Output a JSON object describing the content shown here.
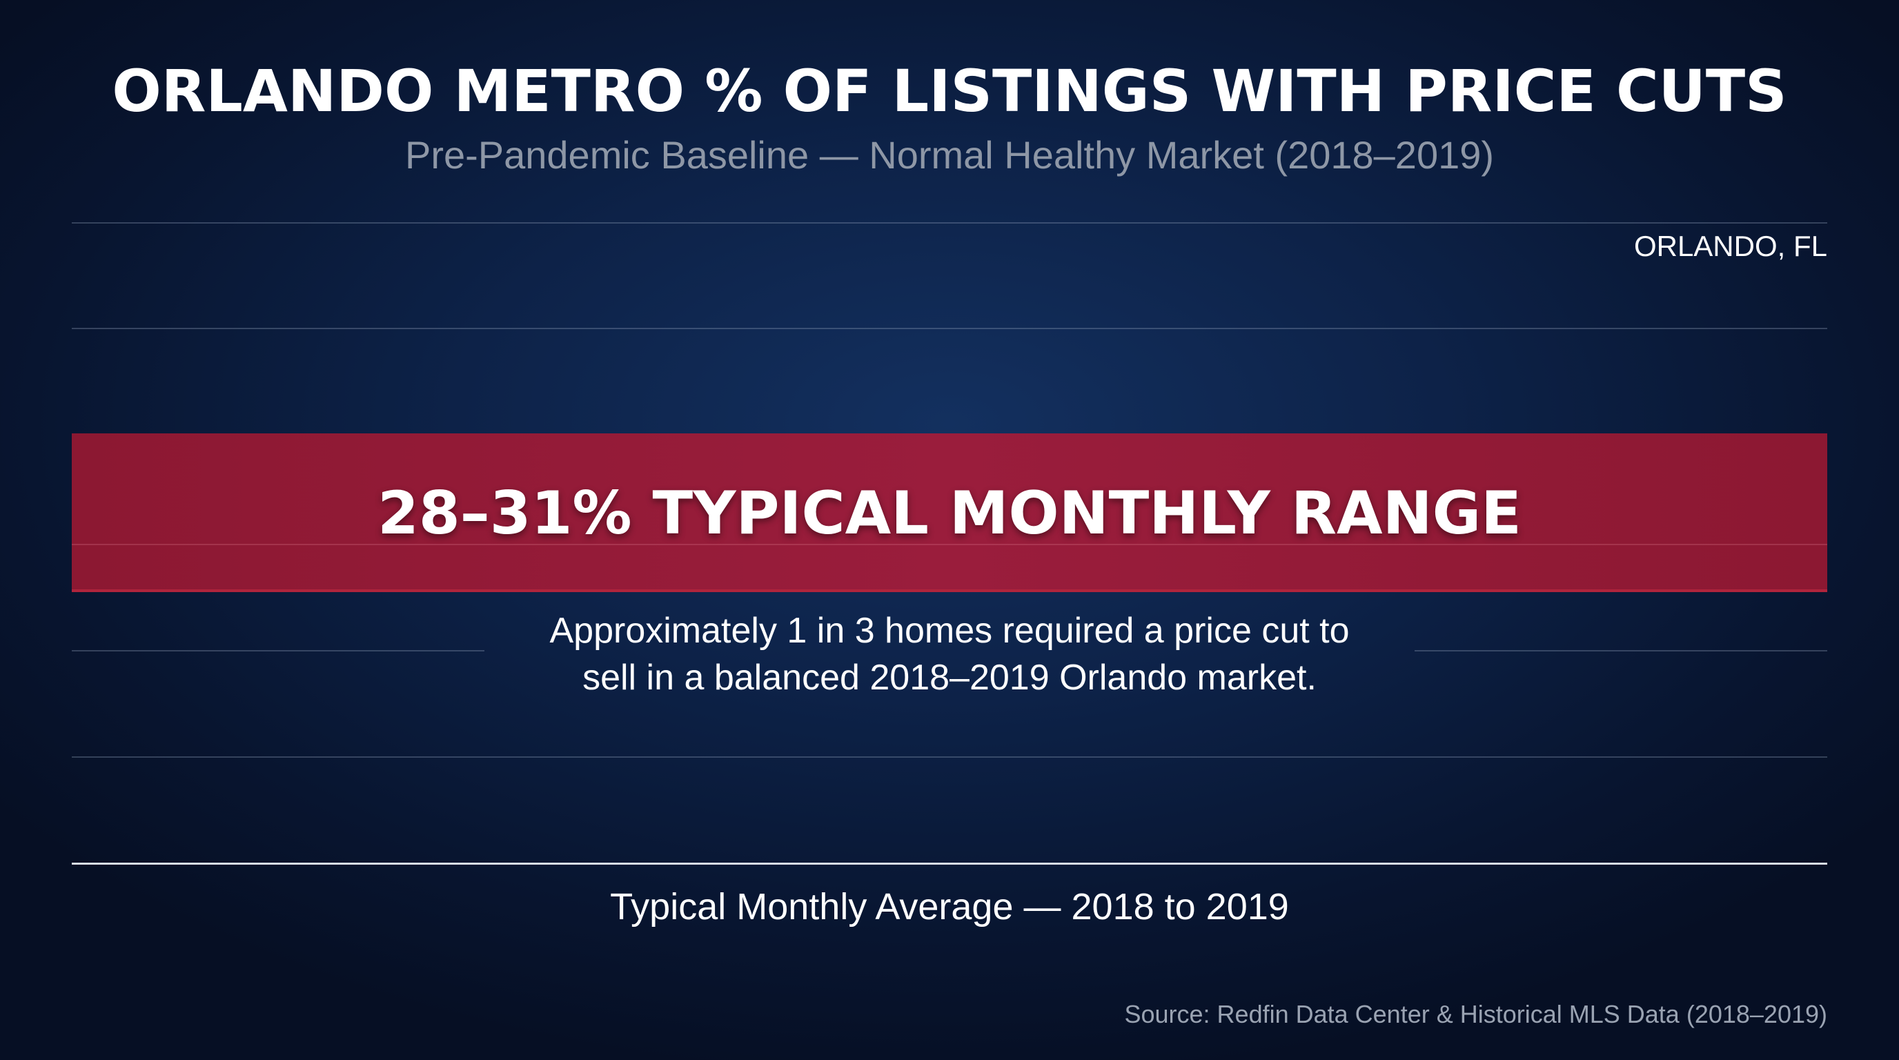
{
  "chart_data": {
    "type": "bar",
    "title": "ORLANDO METRO % OF LISTINGS WITH PRICE CUTS",
    "subtitle": "Pre-Pandemic Baseline — Normal Healthy Market (2018–2019)",
    "location_label": "ORLANDO, FL",
    "xlabel": "Typical Monthly Average — 2018 to 2019",
    "range_band": {
      "low": 28,
      "high": 31,
      "unit": "%",
      "label": "28–31% TYPICAL MONTHLY RANGE",
      "color": "#9a1d3c"
    },
    "annotation_lines": [
      "Approximately 1 in 3 homes required a price cut to",
      "sell in a balanced 2018–2019 Orlando market."
    ],
    "source": "Source: Redfin Data Center & Historical MLS Data (2018–2019)",
    "grid": true
  },
  "colors": {
    "background": "#0d2248",
    "band": "#9a1d3c",
    "subtitle_text": "#8e97a6",
    "source_text": "#9aa3b2"
  }
}
